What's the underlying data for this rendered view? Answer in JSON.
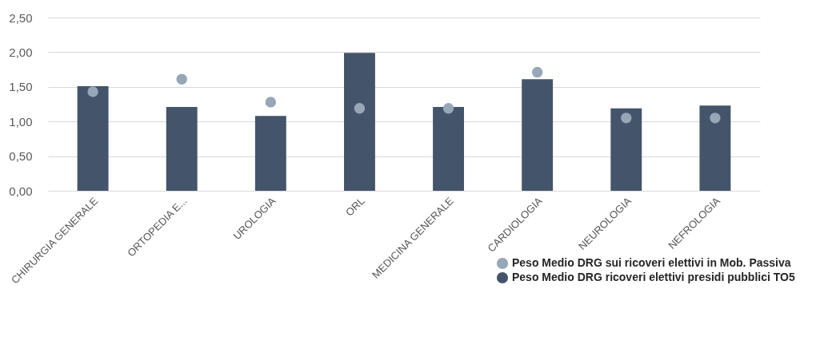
{
  "chart_data": {
    "type": "bar",
    "categories": [
      "CHIRURGIA GENERALE",
      "ORTOPEDIA E...",
      "UROLOGIA",
      "ORL",
      "MEDICINA GENERALE",
      "CARDIOLOGIA",
      "NEUROLOGIA",
      "NEFROLOGIA"
    ],
    "series": [
      {
        "name": "Peso Medio DRG sui ricoveri elettivi in Mob. Passiva",
        "type": "scatter",
        "color": "#97a7b8",
        "values": [
          1.43,
          1.61,
          1.28,
          1.19,
          1.19,
          1.71,
          1.05,
          1.05
        ]
      },
      {
        "name": "Peso Medio DRG ricoveri elettivi presidi pubblici TO5",
        "color": "#44546a",
        "values": [
          1.51,
          1.21,
          1.08,
          1.99,
          1.21,
          1.61,
          1.19,
          1.23
        ]
      }
    ],
    "ylim": [
      0,
      2.5
    ],
    "yticks": [
      {
        "value": 0,
        "label": "0,00"
      },
      {
        "value": 0.5,
        "label": "0,50"
      },
      {
        "value": 1,
        "label": "1,00"
      },
      {
        "value": 1.5,
        "label": "1,50"
      },
      {
        "value": 2,
        "label": "2,00"
      },
      {
        "value": 2.5,
        "label": "2,50"
      }
    ],
    "grid": "y",
    "legend": "bottom right",
    "marker": "circle"
  }
}
